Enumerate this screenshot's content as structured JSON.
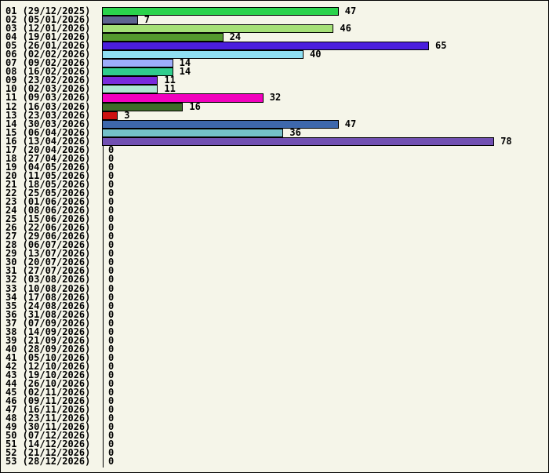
{
  "chart_data": {
    "type": "bar",
    "orientation": "horizontal",
    "title": "",
    "xlabel": "",
    "ylabel": "",
    "legend": false,
    "grid": false,
    "value_labels_shown": true,
    "xlim": [
      0,
      89
    ],
    "background_color": "#f5f5e9",
    "axis_color": "#000000",
    "categories": [
      "01 (29/12/2025)",
      "02 (05/01/2026)",
      "03 (12/01/2026)",
      "04 (19/01/2026)",
      "05 (26/01/2026)",
      "06 (02/02/2026)",
      "07 (09/02/2026)",
      "08 (16/02/2026)",
      "09 (23/02/2026)",
      "10 (02/03/2026)",
      "11 (09/03/2026)",
      "12 (16/03/2026)",
      "13 (23/03/2026)",
      "14 (30/03/2026)",
      "15 (06/04/2026)",
      "16 (13/04/2026)",
      "17 (20/04/2026)",
      "18 (27/04/2026)",
      "19 (04/05/2026)",
      "20 (11/05/2026)",
      "21 (18/05/2026)",
      "22 (25/05/2026)",
      "23 (01/06/2026)",
      "24 (08/06/2026)",
      "25 (15/06/2026)",
      "26 (22/06/2026)",
      "27 (29/06/2026)",
      "28 (06/07/2026)",
      "29 (13/07/2026)",
      "30 (20/07/2026)",
      "31 (27/07/2026)",
      "32 (03/08/2026)",
      "33 (10/08/2026)",
      "34 (17/08/2026)",
      "35 (24/08/2026)",
      "36 (31/08/2026)",
      "37 (07/09/2026)",
      "38 (14/09/2026)",
      "39 (21/09/2026)",
      "40 (28/09/2026)",
      "41 (05/10/2026)",
      "42 (12/10/2026)",
      "43 (19/10/2026)",
      "44 (26/10/2026)",
      "45 (02/11/2026)",
      "46 (09/11/2026)",
      "47 (16/11/2026)",
      "48 (23/11/2026)",
      "49 (30/11/2026)",
      "50 (07/12/2026)",
      "51 (14/12/2026)",
      "52 (21/12/2026)",
      "53 (28/12/2026)"
    ],
    "values": [
      47,
      7,
      46,
      24,
      65,
      40,
      14,
      14,
      11,
      11,
      32,
      16,
      3,
      47,
      36,
      78,
      0,
      0,
      0,
      0,
      0,
      0,
      0,
      0,
      0,
      0,
      0,
      0,
      0,
      0,
      0,
      0,
      0,
      0,
      0,
      0,
      0,
      0,
      0,
      0,
      0,
      0,
      0,
      0,
      0,
      0,
      0,
      0,
      0,
      0,
      0,
      0,
      0
    ],
    "bar_colors": [
      "#2bd34c",
      "#5e6490",
      "#a5e077",
      "#54992e",
      "#4a1edd",
      "#8fdff2",
      "#9dadfb",
      "#30cd8d",
      "#7a2bdc",
      "#aee8d4",
      "#f201be",
      "#3e6b29",
      "#cd1111",
      "#3e68ac",
      "#74c0c8",
      "#7150b2",
      null,
      null,
      null,
      null,
      null,
      null,
      null,
      null,
      null,
      null,
      null,
      null,
      null,
      null,
      null,
      null,
      null,
      null,
      null,
      null,
      null,
      null,
      null,
      null,
      null,
      null,
      null,
      null,
      null,
      null,
      null,
      null,
      null,
      null,
      null,
      null,
      null
    ]
  }
}
